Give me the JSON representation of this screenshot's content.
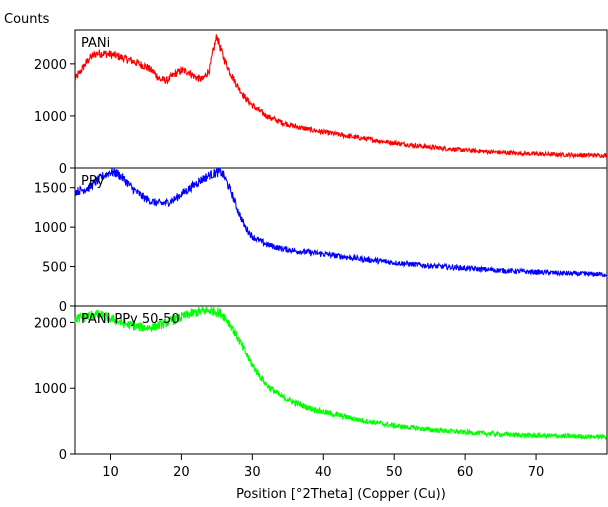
{
  "chart_data": {
    "type": "line",
    "y_title": "Counts",
    "xlabel": "Position [°2Theta] (Copper (Cu))",
    "xlim": [
      5,
      80
    ],
    "x_ticks": [
      10,
      20,
      30,
      40,
      50,
      60,
      70
    ],
    "x_tick_labels": [
      "10",
      "20",
      "30",
      "40",
      "50",
      "60",
      "70"
    ],
    "grid": false,
    "panels": [
      {
        "name": "PANi",
        "color": "#ff0000",
        "ylim": [
          0,
          2650
        ],
        "y_ticks": [
          0,
          1000,
          2000
        ],
        "y_tick_labels": [
          "0",
          "1000",
          "2000"
        ],
        "x": [
          5,
          6,
          7,
          8,
          9,
          10,
          11,
          12,
          13,
          14,
          15,
          16,
          17,
          18,
          19,
          20,
          21,
          22,
          23,
          24,
          24.5,
          25,
          25.5,
          26,
          27,
          28,
          29,
          30,
          32,
          34,
          36,
          38,
          40,
          45,
          50,
          55,
          60,
          65,
          70,
          75,
          80
        ],
        "y": [
          1700,
          1900,
          2100,
          2200,
          2200,
          2180,
          2150,
          2100,
          2060,
          2000,
          1950,
          1850,
          1700,
          1680,
          1800,
          1870,
          1850,
          1740,
          1700,
          1900,
          2250,
          2540,
          2300,
          2100,
          1800,
          1550,
          1350,
          1200,
          1000,
          880,
          800,
          740,
          690,
          580,
          480,
          400,
          340,
          300,
          270,
          250,
          240
        ]
      },
      {
        "name": "PPy",
        "color": "#0000ff",
        "ylim": [
          0,
          1750
        ],
        "y_ticks": [
          0,
          500,
          1000,
          1500
        ],
        "y_tick_labels": [
          "0",
          "500",
          "1000",
          "1500"
        ],
        "x": [
          5,
          6,
          7,
          8,
          9,
          10,
          11,
          12,
          13,
          14,
          15,
          16,
          17,
          18,
          19,
          20,
          21,
          22,
          23,
          24,
          25,
          25.5,
          26,
          27,
          28,
          29,
          30,
          32,
          34,
          36,
          38,
          40,
          45,
          50,
          55,
          60,
          65,
          70,
          75,
          80
        ],
        "y": [
          1450,
          1470,
          1500,
          1580,
          1650,
          1700,
          1680,
          1600,
          1500,
          1420,
          1360,
          1320,
          1300,
          1310,
          1350,
          1420,
          1480,
          1550,
          1610,
          1660,
          1690,
          1700,
          1650,
          1450,
          1200,
          1000,
          880,
          780,
          730,
          700,
          680,
          660,
          600,
          550,
          510,
          480,
          450,
          430,
          410,
          400
        ]
      },
      {
        "name": "PANi PPy 50-50",
        "color": "#00ff00",
        "ylim": [
          0,
          2250
        ],
        "y_ticks": [
          0,
          1000,
          2000
        ],
        "y_tick_labels": [
          "0",
          "1000",
          "2000"
        ],
        "x": [
          5,
          6,
          7,
          8,
          9,
          10,
          11,
          12,
          13,
          14,
          15,
          16,
          17,
          18,
          19,
          20,
          21,
          22,
          23,
          24,
          25,
          26,
          27,
          28,
          29,
          30,
          32,
          34,
          36,
          38,
          40,
          45,
          50,
          55,
          60,
          65,
          70,
          75,
          80
        ],
        "y": [
          2050,
          2070,
          2100,
          2120,
          2100,
          2060,
          2020,
          1980,
          1950,
          1930,
          1920,
          1930,
          1960,
          2000,
          2040,
          2080,
          2120,
          2150,
          2170,
          2180,
          2170,
          2100,
          1950,
          1750,
          1550,
          1350,
          1050,
          880,
          780,
          700,
          640,
          520,
          430,
          370,
          330,
          300,
          280,
          270,
          260
        ]
      }
    ]
  }
}
